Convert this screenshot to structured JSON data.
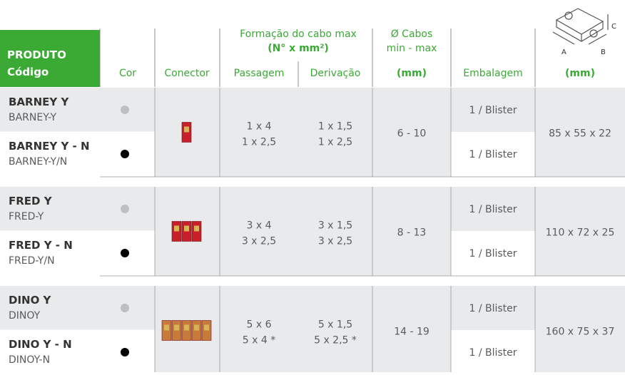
{
  "header": {
    "produto": "PRODUTO",
    "codigo": "Código",
    "cor": "Cor",
    "conector": "Conector",
    "formacao": "Formação do cabo max",
    "formacao_unit": "(N° x mm²)",
    "passagem": "Passagem",
    "derivacao": "Derivação",
    "cabos": "Ø Cabos",
    "cabos_range": "min - max",
    "cabos_unit": "(mm)",
    "embalagem": "Embalagem",
    "dim_unit": "(mm)",
    "dim_labels": [
      "A",
      "B",
      "C"
    ]
  },
  "groups": [
    {
      "variants": [
        {
          "name": "BARNEY Y",
          "code": "BARNEY-Y",
          "color": "#bdbfc1",
          "packaging": "1 / Blister"
        },
        {
          "name": "BARNEY Y - N",
          "code": "BARNEY-Y/N",
          "color": "#000000",
          "packaging": "1 / Blister"
        }
      ],
      "passagem": [
        "1 x 4",
        "1 x 2,5"
      ],
      "derivacao": [
        "1 x 1,5",
        "1 x 2,5"
      ],
      "cabos": "6 - 10",
      "dimensions": "85 x 55 x 22"
    },
    {
      "variants": [
        {
          "name": "FRED Y",
          "code": "FRED-Y",
          "color": "#bdbfc1",
          "packaging": "1 / Blister"
        },
        {
          "name": "FRED Y - N",
          "code": "FRED-Y/N",
          "color": "#000000",
          "packaging": "1 / Blister"
        }
      ],
      "passagem": [
        "3 x 4",
        "3 x 2,5"
      ],
      "derivacao": [
        "3 x 1,5",
        "3 x 2,5"
      ],
      "cabos": "8 - 13",
      "dimensions": "110 x 72 x 25"
    },
    {
      "variants": [
        {
          "name": "DINO Y",
          "code": "DINOY",
          "color": "#bdbfc1",
          "packaging": "1 / Blister"
        },
        {
          "name": "DINO Y - N",
          "code": "DINOY-N",
          "color": "#000000",
          "packaging": "1 / Blister"
        }
      ],
      "passagem": [
        "5 x 6",
        "5 x 4 *"
      ],
      "derivacao": [
        "5 x 1,5",
        "5 x 2,5 *"
      ],
      "cabos": "14 - 19",
      "dimensions": "160 x 75 x 37"
    }
  ]
}
